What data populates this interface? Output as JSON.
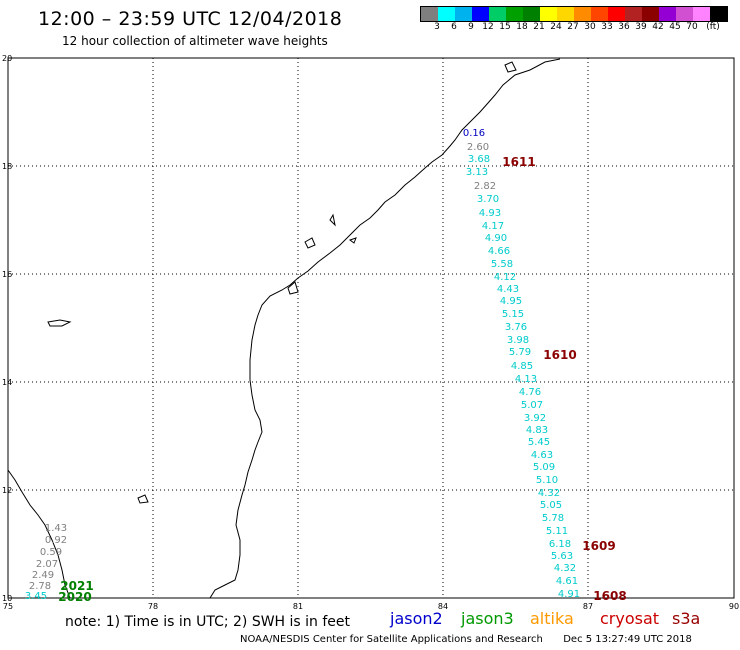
{
  "header": {
    "title": "12:00 – 23:59 UTC 12/04/2018",
    "subtitle": "12 hour collection of altimeter wave heights"
  },
  "legend": {
    "unit": "(ft)",
    "colors": [
      "#7f7f7f",
      "#00ffff",
      "#00b2ee",
      "#0000ff",
      "#00cd66",
      "#00a000",
      "#008000",
      "#ffff00",
      "#ffd700",
      "#ff8c00",
      "#ff4500",
      "#ff0000",
      "#b22222",
      "#8b0000",
      "#9400d3",
      "#d14fd1",
      "#ff82ff",
      "#000000"
    ],
    "labels": [
      "3",
      "6",
      "9",
      "12",
      "15",
      "18",
      "21",
      "24",
      "27",
      "30",
      "33",
      "36",
      "39",
      "42",
      "45",
      "70"
    ]
  },
  "axes": {
    "x_ticks": [
      "75",
      "78",
      "81",
      "84",
      "87",
      "90"
    ],
    "y_ticks": [
      "20",
      "18",
      "16",
      "14",
      "12",
      "10"
    ]
  },
  "tracks": [
    {
      "id": "1611",
      "color": "#8b0000",
      "values": [
        {
          "v": "0.16",
          "c": "#0000c0"
        },
        {
          "v": "2.60",
          "c": "#808080"
        },
        {
          "v": "3.68",
          "c": "#00cccc"
        },
        {
          "v": "3.13",
          "c": "#00cccc"
        },
        {
          "v": "2.82",
          "c": "#808080"
        },
        {
          "v": "3.70",
          "c": "#00cccc"
        },
        {
          "v": "4.93",
          "c": "#00cccc"
        },
        {
          "v": "4.17",
          "c": "#00cccc"
        },
        {
          "v": "4.90",
          "c": "#00cccc"
        },
        {
          "v": "4.66",
          "c": "#00cccc"
        },
        {
          "v": "5.58",
          "c": "#00cccc"
        },
        {
          "v": "4.12",
          "c": "#00cccc"
        },
        {
          "v": "4.43",
          "c": "#00cccc"
        },
        {
          "v": "4.95",
          "c": "#00cccc"
        },
        {
          "v": "5.15",
          "c": "#00cccc"
        },
        {
          "v": "3.76",
          "c": "#00cccc"
        },
        {
          "v": "3.98",
          "c": "#00cccc"
        },
        {
          "v": "5.79",
          "c": "#00cccc"
        },
        {
          "v": "4.85",
          "c": "#00cccc"
        },
        {
          "v": "4.13",
          "c": "#00cccc"
        },
        {
          "v": "4.76",
          "c": "#00cccc"
        },
        {
          "v": "5.07",
          "c": "#00cccc"
        },
        {
          "v": "3.92",
          "c": "#00cccc"
        },
        {
          "v": "4.83",
          "c": "#00cccc"
        },
        {
          "v": "5.45",
          "c": "#00cccc"
        },
        {
          "v": "4.63",
          "c": "#00cccc"
        },
        {
          "v": "5.09",
          "c": "#00cccc"
        },
        {
          "v": "5.10",
          "c": "#00cccc"
        },
        {
          "v": "4.32",
          "c": "#00cccc"
        },
        {
          "v": "5.05",
          "c": "#00cccc"
        },
        {
          "v": "5.78",
          "c": "#00cccc"
        },
        {
          "v": "5.11",
          "c": "#00cccc"
        },
        {
          "v": "6.18",
          "c": "#00cccc"
        },
        {
          "v": "5.63",
          "c": "#00cccc"
        },
        {
          "v": "4.32",
          "c": "#00cccc"
        },
        {
          "v": "4.61",
          "c": "#00cccc"
        },
        {
          "v": "4.91",
          "c": "#00cccc"
        }
      ]
    },
    {
      "id": "1610",
      "color": "#8b0000"
    },
    {
      "id": "1609",
      "color": "#8b0000"
    },
    {
      "id": "1608",
      "color": "#8b0000"
    },
    {
      "id": "2021",
      "color": "#008000",
      "values": [
        {
          "v": "1.43",
          "c": "#808080"
        },
        {
          "v": "0.92",
          "c": "#808080"
        },
        {
          "v": "0.59",
          "c": "#808080"
        },
        {
          "v": "2.07",
          "c": "#808080"
        },
        {
          "v": "2.49",
          "c": "#808080"
        },
        {
          "v": "2.78",
          "c": "#808080"
        },
        {
          "v": "3.45",
          "c": "#00cccc"
        }
      ]
    },
    {
      "id": "2020",
      "color": "#008000"
    }
  ],
  "note": "note: 1) Time is in UTC; 2) SWH is in feet",
  "satellites": [
    {
      "name": "jason2",
      "color": "#0000cc"
    },
    {
      "name": "jason3",
      "color": "#009900"
    },
    {
      "name": "altika",
      "color": "#ff9900"
    },
    {
      "name": "cryosat",
      "color": "#cc0000"
    },
    {
      "name": "s3a",
      "color": "#990000"
    }
  ],
  "footer": {
    "credit": "NOAA/NESDIS Center for Satellite Applications and Research",
    "timestamp": "Dec  5 13:27:49 UTC 2018"
  }
}
